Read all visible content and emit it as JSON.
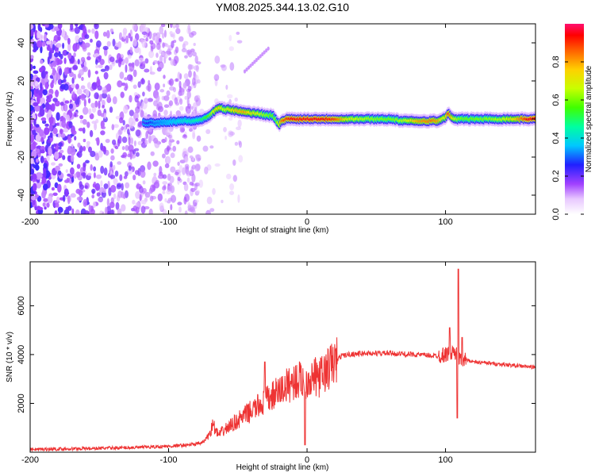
{
  "title": "YM08.2025.344.13.02.G10",
  "chart_data": [
    {
      "type": "heatmap",
      "name": "spectrogram",
      "xlabel": "Height of straight line (km)",
      "ylabel": "Frequency (Hz)",
      "xlim": [
        -200,
        165
      ],
      "ylim": [
        -50,
        50
      ],
      "xticks": [
        -200,
        -100,
        0,
        100
      ],
      "xtick_labels": [
        "-200",
        "-100",
        "0",
        "100"
      ],
      "yticks": [
        -40,
        -20,
        0,
        20,
        40
      ],
      "ytick_labels": [
        "-40",
        "-20",
        "0",
        "20",
        "40"
      ],
      "colorbar": {
        "label": "Normalized spectral amplitude",
        "range": [
          0,
          1
        ],
        "ticks": [
          0.0,
          0.2,
          0.4,
          0.6,
          0.8
        ],
        "tick_labels": [
          "0.0",
          "0.2",
          "0.4",
          "0.6",
          "0.8"
        ]
      },
      "signal_trace": {
        "x": [
          -118,
          -110,
          -100,
          -90,
          -80,
          -75,
          -70,
          -67,
          -63,
          -60,
          -55,
          -50,
          -45,
          -40,
          -35,
          -30,
          -25,
          -22,
          -20,
          -18,
          -15,
          -10,
          -5,
          0,
          10,
          20,
          30,
          40,
          50,
          60,
          70,
          80,
          90,
          95,
          98,
          100,
          102,
          104,
          106,
          110,
          120,
          130,
          140,
          150,
          160,
          165
        ],
        "freq": [
          -2,
          -2,
          -1.5,
          -1,
          -1,
          0,
          2,
          4,
          6,
          5,
          5,
          4,
          4,
          3,
          3,
          2,
          2,
          -1,
          -3,
          -1,
          0,
          0,
          0,
          0,
          0,
          0,
          0,
          0,
          0,
          0,
          -1,
          -1,
          -1,
          -1,
          0,
          1,
          3,
          1,
          0,
          0,
          0,
          0,
          0,
          0,
          0,
          0
        ],
        "amplitude": [
          0.22,
          0.3,
          0.35,
          0.4,
          0.45,
          0.5,
          0.6,
          0.7,
          0.75,
          0.65,
          0.72,
          0.78,
          0.8,
          0.72,
          0.68,
          0.62,
          0.58,
          0.6,
          0.7,
          0.85,
          0.9,
          0.95,
          0.95,
          0.95,
          0.95,
          0.9,
          0.7,
          0.65,
          0.62,
          0.6,
          0.65,
          0.8,
          0.85,
          0.8,
          0.7,
          0.7,
          0.9,
          0.8,
          0.7,
          0.6,
          0.6,
          0.62,
          0.65,
          0.75,
          0.95,
          0.95
        ]
      },
      "noise_region_x": [
        -200,
        -78
      ],
      "artifact_streak": {
        "x": [
          -45,
          -28
        ],
        "freq": [
          25,
          37
        ]
      }
    },
    {
      "type": "line",
      "name": "snr",
      "xlabel": "Height of straight line (km)",
      "ylabel": "SNR (10 * v/v)",
      "xlim": [
        -200,
        165
      ],
      "ylim": [
        0,
        7800
      ],
      "xticks": [
        -200,
        -100,
        0,
        100
      ],
      "xtick_labels": [
        "-200",
        "-100",
        "0",
        "100"
      ],
      "yticks": [
        2000,
        4000,
        6000
      ],
      "ytick_labels": [
        "2000",
        "4000",
        "6000"
      ],
      "color": "#ee3333",
      "envelope": {
        "x": [
          -200,
          -180,
          -150,
          -120,
          -100,
          -90,
          -80,
          -75,
          -70,
          -68,
          -66,
          -64,
          -62,
          -60,
          -55,
          -50,
          -45,
          -40,
          -35,
          -30,
          -25,
          -20,
          -15,
          -10,
          -5,
          0,
          5,
          10,
          15,
          20,
          25,
          30,
          40,
          50,
          60,
          70,
          80,
          90,
          95,
          100,
          105,
          108,
          110,
          115,
          120,
          130,
          140,
          150,
          160,
          165
        ],
        "snr": [
          120,
          130,
          160,
          200,
          240,
          280,
          330,
          400,
          800,
          1150,
          900,
          700,
          800,
          900,
          1100,
          1300,
          1500,
          1700,
          1900,
          2100,
          2300,
          2500,
          2700,
          2900,
          2950,
          3000,
          3050,
          3100,
          3400,
          3700,
          3950,
          4000,
          4050,
          4050,
          4050,
          4020,
          4000,
          3950,
          3950,
          4000,
          4100,
          4000,
          3800,
          3800,
          3700,
          3650,
          3600,
          3550,
          3500,
          3480
        ]
      },
      "spikes": [
        {
          "x": -30.5,
          "snr": 3700
        },
        {
          "x": -1.5,
          "snr": 300
        },
        {
          "x": 103,
          "snr": 5100
        },
        {
          "x": 108.5,
          "snr": 1400
        },
        {
          "x": 109.2,
          "snr": 7500
        },
        {
          "x": 112,
          "snr": 4700
        }
      ]
    }
  ]
}
